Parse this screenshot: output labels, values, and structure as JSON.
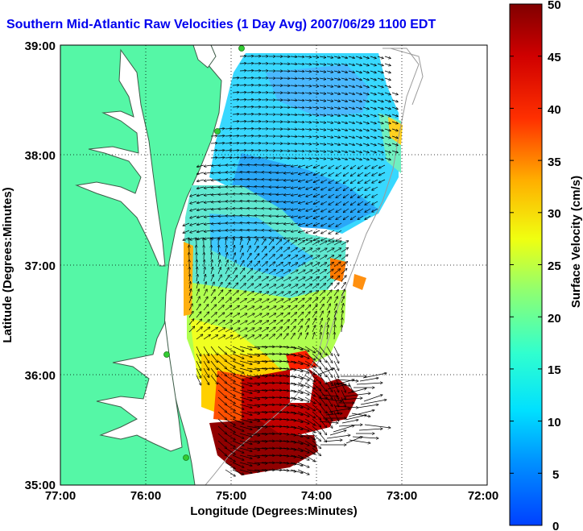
{
  "title": "Southern Mid-Atlantic Raw Velocities (1 Day Avg) 2007/06/29 1100 EDT",
  "map": {
    "xlabel": "Longitude (Degrees:Minutes)",
    "ylabel": "Latitude (Degrees:Minutes)",
    "x_ticks": [
      "77:00",
      "76:00",
      "75:00",
      "74:00",
      "73:00",
      "72:00"
    ],
    "y_ticks": [
      "39:00",
      "38:00",
      "37:00",
      "36:00",
      "35:00"
    ],
    "x_range_deg": [
      -77,
      -72
    ],
    "y_range_deg": [
      35,
      39
    ],
    "grid": "dotted",
    "land_color": "#55f7a6",
    "coast_color": "#4a6a55",
    "bathymetry_color": "#9a9a9a",
    "arrow_color": "#000000",
    "station_color": "#33cc33",
    "station_markers": 4
  },
  "colorbar": {
    "label": "Surface Velocity (cm/s)",
    "ticks": [
      "50",
      "45",
      "40",
      "35",
      "30",
      "25",
      "20",
      "15",
      "10",
      "5",
      "0"
    ],
    "range": [
      0,
      50
    ],
    "colormap": "jet"
  }
}
